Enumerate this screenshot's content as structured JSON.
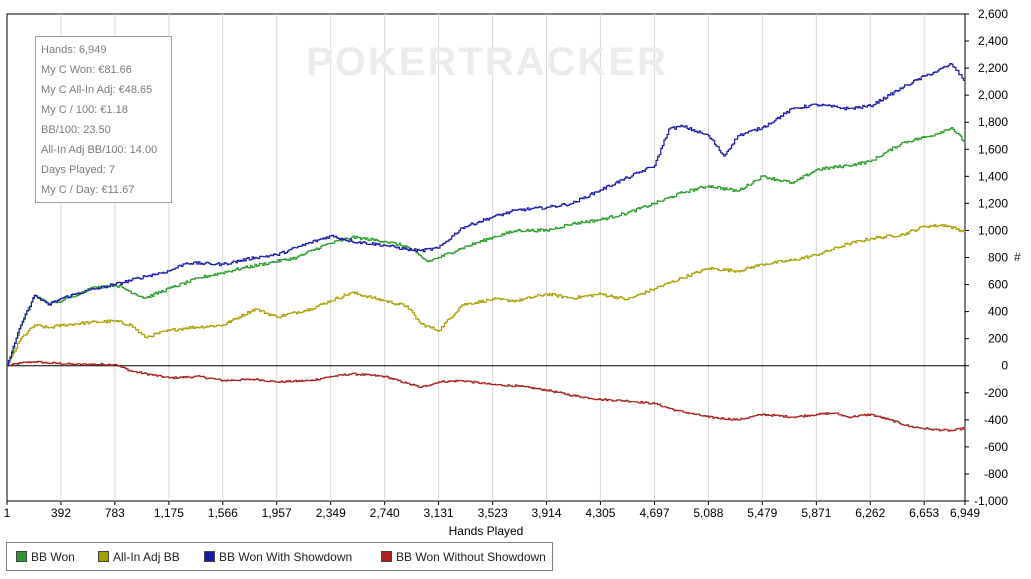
{
  "watermark": "POKERTRACKER",
  "stats": [
    "Hands: 6,949",
    "My C Won: €81.66",
    "My C All-In Adj: €48.65",
    "My C / 100: €1.18",
    "BB/100: 23.50",
    "All-In Adj BB/100: 14.00",
    "Days Played: 7",
    "My C / Day: €11.67"
  ],
  "legend": [
    {
      "label": "BB Won",
      "color": "#2a9a2a"
    },
    {
      "label": "All-In Adj BB",
      "color": "#a8a000"
    },
    {
      "label": "BB Won With Showdown",
      "color": "#1a1aa8"
    },
    {
      "label": "BB Won Without Showdown",
      "color": "#a82020"
    }
  ],
  "chart_data": {
    "type": "line",
    "xlabel": "Hands Played",
    "ylabel": "#",
    "xlim": [
      1,
      6949
    ],
    "ylim": [
      -1000,
      2600
    ],
    "x_ticks": [
      1,
      392,
      783,
      1175,
      1566,
      1957,
      2349,
      2740,
      3131,
      3523,
      3914,
      4305,
      4697,
      5088,
      5479,
      5871,
      6262,
      6653,
      6949
    ],
    "x_tick_labels": [
      "1",
      "392",
      "783",
      "1,175",
      "1,566",
      "1,957",
      "2,349",
      "2,740",
      "3,131",
      "3,523",
      "3,914",
      "4,305",
      "4,697",
      "5,088",
      "5,479",
      "5,871",
      "6,262",
      "6,653",
      "6,949"
    ],
    "y_ticks": [
      -1000,
      -800,
      -600,
      -400,
      -200,
      0,
      200,
      400,
      600,
      800,
      1000,
      1200,
      1400,
      1600,
      1800,
      2000,
      2200,
      2400,
      2600
    ],
    "y_tick_labels": [
      "-1,000",
      "-800",
      "-600",
      "-400",
      "-200",
      "0",
      "200",
      "400",
      "600",
      "800",
      "1,000",
      "1,200",
      "1,400",
      "1,600",
      "1,800",
      "2,000",
      "2,200",
      "2,400",
      "2,600"
    ],
    "grid": "vertical",
    "series": [
      {
        "name": "BB Won",
        "color": "#2a9a2a",
        "x": [
          1,
          100,
          200,
          300,
          400,
          600,
          783,
          1000,
          1200,
          1400,
          1700,
          1900,
          2100,
          2300,
          2500,
          2740,
          2900,
          3050,
          3131,
          3300,
          3523,
          3700,
          3914,
          4100,
          4305,
          4500,
          4697,
          4900,
          5088,
          5300,
          5479,
          5700,
          5871,
          6100,
          6262,
          6500,
          6700,
          6850,
          6949
        ],
        "y": [
          0,
          300,
          520,
          460,
          480,
          570,
          600,
          500,
          580,
          650,
          720,
          760,
          800,
          890,
          950,
          920,
          880,
          770,
          800,
          870,
          950,
          1000,
          1000,
          1050,
          1080,
          1130,
          1200,
          1280,
          1330,
          1290,
          1400,
          1350,
          1450,
          1480,
          1510,
          1650,
          1700,
          1760,
          1650
        ]
      },
      {
        "name": "All-In Adj BB",
        "color": "#a8a000",
        "x": [
          1,
          100,
          200,
          300,
          400,
          600,
          783,
          900,
          1000,
          1175,
          1300,
          1566,
          1800,
          1957,
          2200,
          2349,
          2500,
          2740,
          2900,
          3000,
          3131,
          3300,
          3523,
          3700,
          3914,
          4100,
          4305,
          4500,
          4697,
          4900,
          5088,
          5300,
          5479,
          5700,
          5871,
          6100,
          6262,
          6500,
          6653,
          6800,
          6949
        ],
        "y": [
          0,
          200,
          300,
          280,
          300,
          320,
          330,
          300,
          210,
          260,
          280,
          300,
          420,
          360,
          420,
          480,
          540,
          480,
          440,
          310,
          260,
          450,
          490,
          480,
          530,
          500,
          530,
          490,
          570,
          650,
          720,
          700,
          750,
          780,
          820,
          900,
          940,
          970,
          1030,
          1040,
          990
        ]
      },
      {
        "name": "BB Won With Showdown",
        "color": "#1a1aa8",
        "x": [
          1,
          100,
          200,
          300,
          400,
          600,
          783,
          1000,
          1175,
          1300,
          1566,
          1800,
          1957,
          2200,
          2349,
          2500,
          2740,
          2900,
          3000,
          3131,
          3300,
          3523,
          3700,
          3914,
          4100,
          4305,
          4500,
          4697,
          4800,
          4900,
          5088,
          5200,
          5300,
          5479,
          5700,
          5871,
          6100,
          6262,
          6400,
          6500,
          6653,
          6750,
          6850,
          6949
        ],
        "y": [
          0,
          300,
          520,
          450,
          500,
          560,
          600,
          660,
          700,
          760,
          750,
          800,
          820,
          910,
          960,
          920,
          890,
          860,
          850,
          870,
          1020,
          1100,
          1150,
          1170,
          1200,
          1300,
          1390,
          1480,
          1750,
          1770,
          1700,
          1550,
          1700,
          1760,
          1900,
          1930,
          1900,
          1920,
          2000,
          2060,
          2140,
          2180,
          2230,
          2100
        ]
      },
      {
        "name": "BB Won Without Showdown",
        "color": "#a82020",
        "x": [
          1,
          100,
          200,
          300,
          500,
          783,
          900,
          1175,
          1400,
          1566,
          1800,
          1957,
          2200,
          2349,
          2500,
          2740,
          2900,
          3000,
          3131,
          3300,
          3523,
          3700,
          3914,
          4100,
          4305,
          4500,
          4697,
          4850,
          5088,
          5300,
          5479,
          5700,
          5871,
          6000,
          6100,
          6262,
          6400,
          6550,
          6700,
          6850,
          6949
        ],
        "y": [
          0,
          20,
          30,
          20,
          10,
          10,
          -40,
          -90,
          -80,
          -110,
          -100,
          -120,
          -110,
          -80,
          -60,
          -80,
          -130,
          -160,
          -120,
          -110,
          -140,
          -150,
          -180,
          -220,
          -250,
          -260,
          -280,
          -330,
          -380,
          -400,
          -360,
          -380,
          -360,
          -350,
          -380,
          -360,
          -400,
          -450,
          -470,
          -480,
          -460
        ]
      }
    ]
  }
}
